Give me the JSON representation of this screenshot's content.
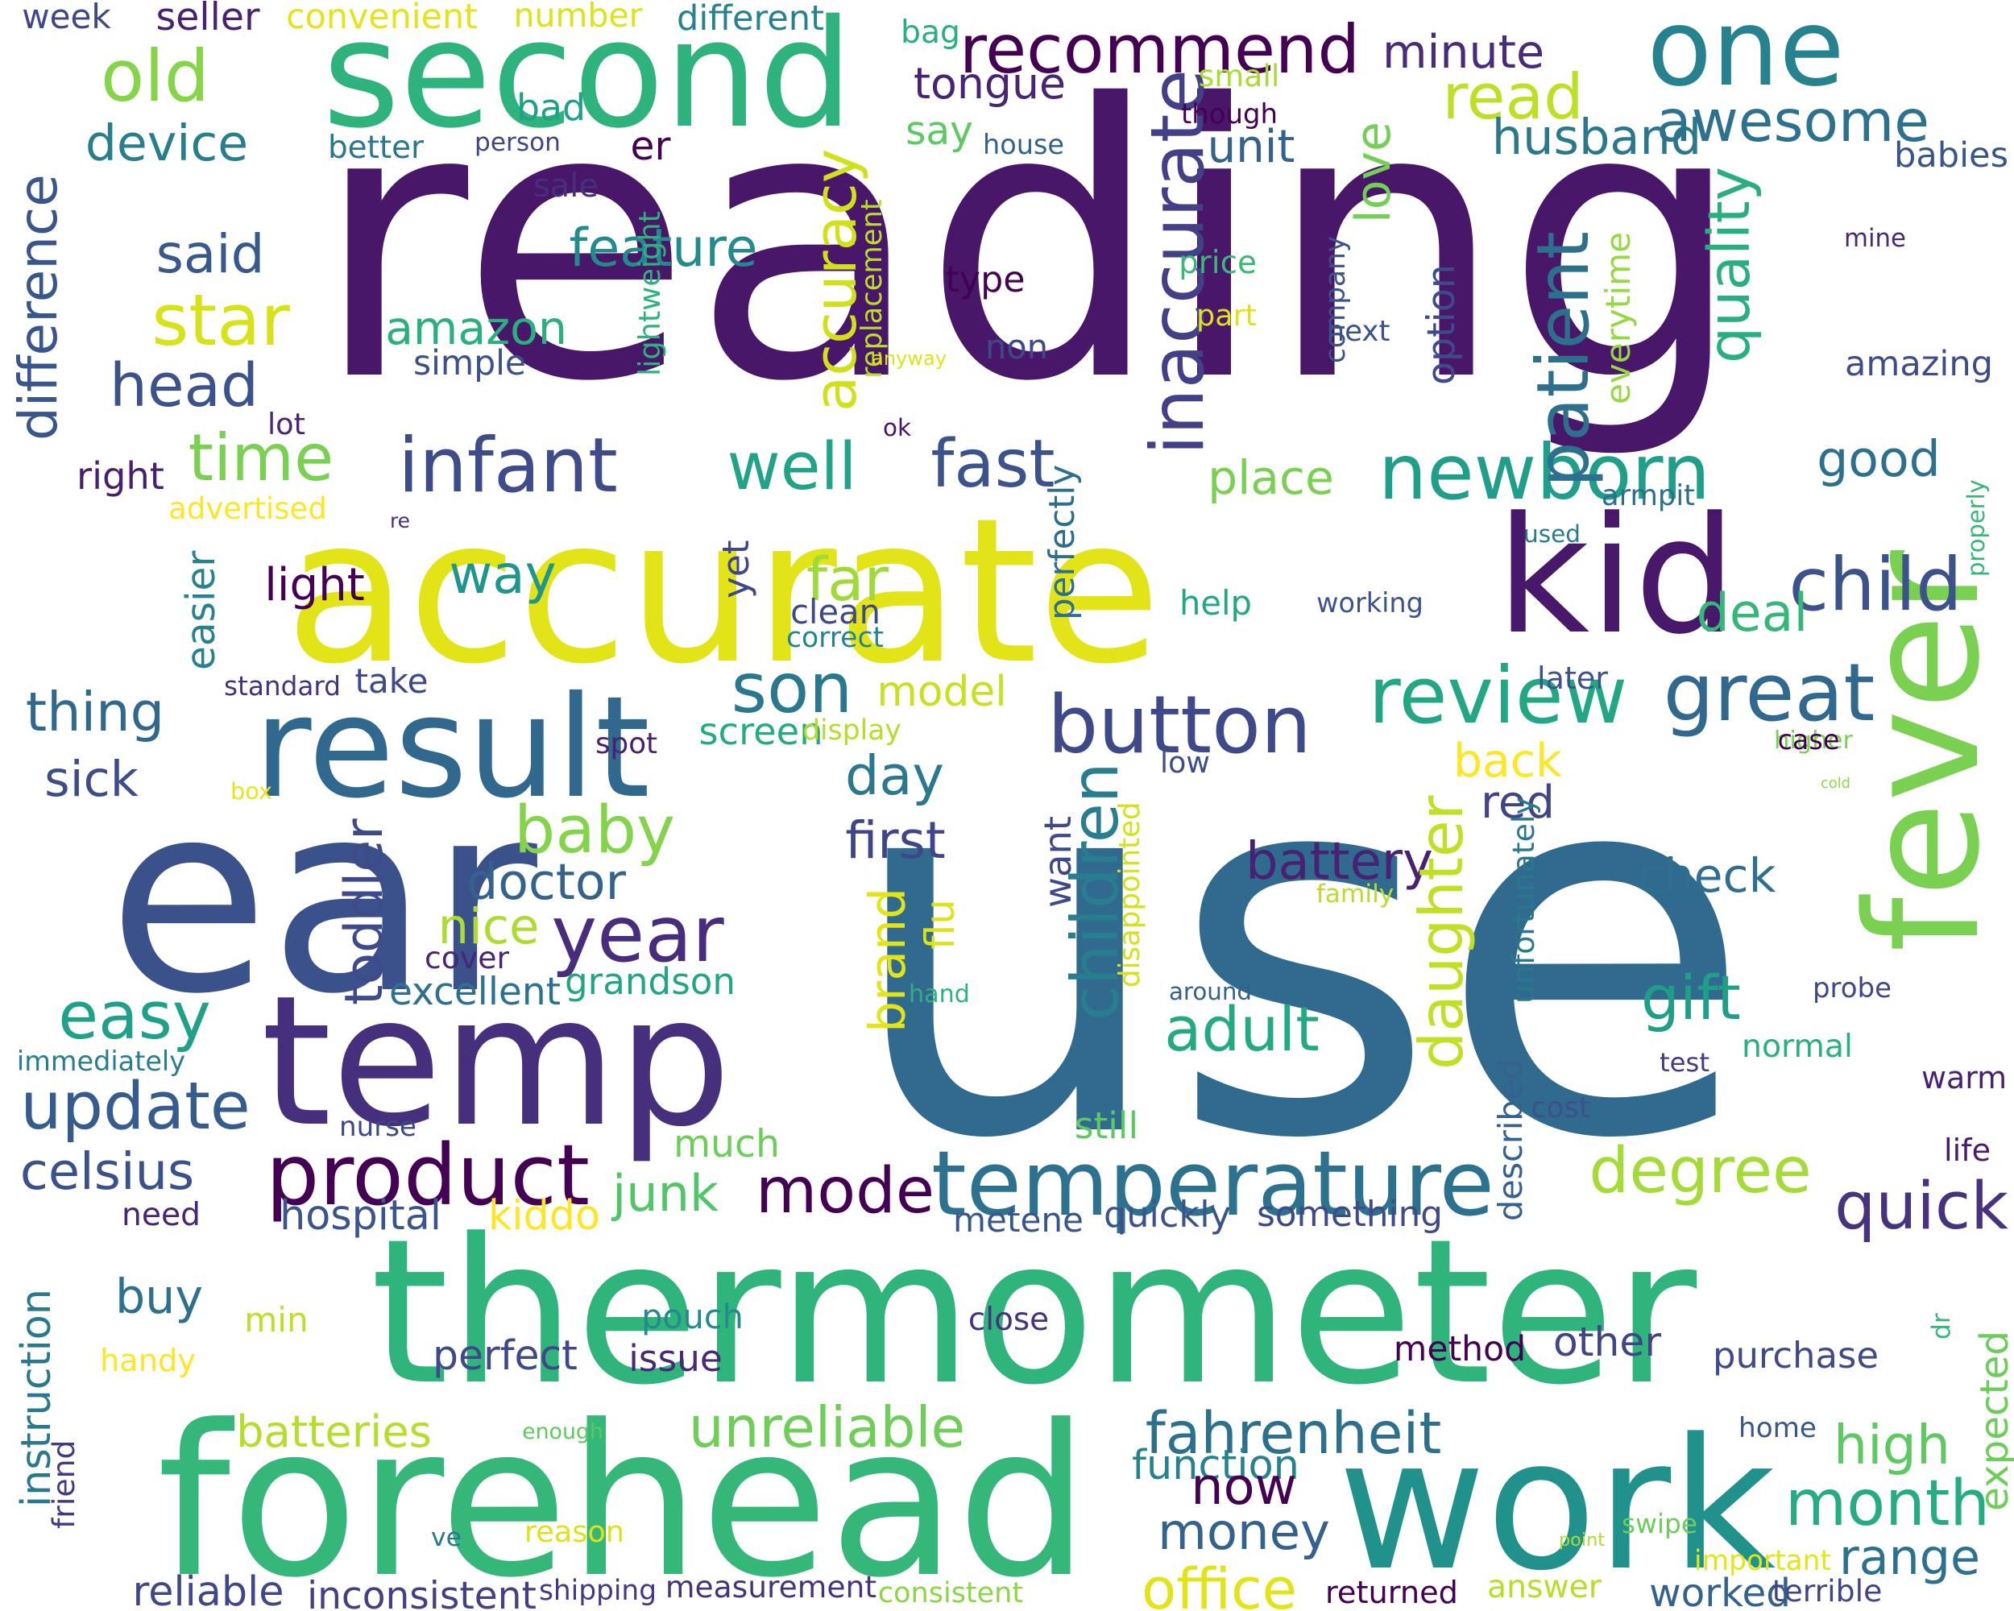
{
  "words": [
    {
      "text": "reading",
      "color": "#481769"
    },
    {
      "text": "use",
      "color": "#306a8e"
    },
    {
      "text": "thermometer",
      "color": "#2fb47c"
    },
    {
      "text": "accurate",
      "color": "#e2e418"
    },
    {
      "text": "ear",
      "color": "#3b518b"
    },
    {
      "text": "temp",
      "color": "#46307e"
    },
    {
      "text": "forehead",
      "color": "#35b779"
    },
    {
      "text": "second",
      "color": "#2eb37c"
    },
    {
      "text": "kid",
      "color": "#48186a"
    },
    {
      "text": "result",
      "color": "#31688e"
    },
    {
      "text": "work",
      "color": "#21918c"
    },
    {
      "text": "fever",
      "color": "#7ad151"
    },
    {
      "text": "one",
      "color": "#26828e"
    },
    {
      "text": "button",
      "color": "#3e4989"
    },
    {
      "text": "product",
      "color": "#440154"
    },
    {
      "text": "temperature",
      "color": "#2c728e"
    },
    {
      "text": "newborn",
      "color": "#1f9e89"
    },
    {
      "text": "infant",
      "color": "#3e4c8a"
    },
    {
      "text": "recommend",
      "color": "#440154"
    },
    {
      "text": "read",
      "color": "#bddf26"
    },
    {
      "text": "review",
      "color": "#22a785"
    },
    {
      "text": "great",
      "color": "#31688e"
    },
    {
      "text": "child",
      "color": "#3b528b"
    },
    {
      "text": "year",
      "color": "#472d7b"
    },
    {
      "text": "easy",
      "color": "#1fa088"
    },
    {
      "text": "update",
      "color": "#365c8d"
    },
    {
      "text": "mode",
      "color": "#440154"
    },
    {
      "text": "degree",
      "color": "#a5db36"
    },
    {
      "text": "time",
      "color": "#7ad151"
    },
    {
      "text": "star",
      "color": "#d8e219"
    },
    {
      "text": "son",
      "color": "#2a788e"
    },
    {
      "text": "well",
      "color": "#20a386"
    },
    {
      "text": "fast",
      "color": "#3b528b"
    },
    {
      "text": "husband",
      "color": "#2a788e"
    },
    {
      "text": "awesome",
      "color": "#2c728e"
    },
    {
      "text": "old",
      "color": "#86d549"
    },
    {
      "text": "device",
      "color": "#277f8e"
    },
    {
      "text": "inaccurate",
      "color": "#424086"
    },
    {
      "text": "option",
      "color": "#3e4a89"
    },
    {
      "text": "love",
      "color": "#73d056"
    },
    {
      "text": "unit",
      "color": "#33638d"
    },
    {
      "text": "minute",
      "color": "#472c7a"
    },
    {
      "text": "tongue",
      "color": "#482475"
    },
    {
      "text": "say",
      "color": "#5ec962"
    },
    {
      "text": "quality",
      "color": "#29af7f"
    },
    {
      "text": "patient",
      "color": "#2d708e"
    },
    {
      "text": "accuracy",
      "color": "#d0e11c"
    },
    {
      "text": "feature",
      "color": "#238a8d"
    },
    {
      "text": "said",
      "color": "#38598c"
    },
    {
      "text": "amazon",
      "color": "#2ab07f"
    },
    {
      "text": "head",
      "color": "#3b528b"
    },
    {
      "text": "difference",
      "color": "#39568c"
    },
    {
      "text": "place",
      "color": "#7ad151"
    },
    {
      "text": "good",
      "color": "#2d708e"
    },
    {
      "text": "way",
      "color": "#1f968b"
    },
    {
      "text": "light",
      "color": "#440154"
    },
    {
      "text": "far",
      "color": "#a0da39"
    },
    {
      "text": "deal",
      "color": "#35b779"
    },
    {
      "text": "day",
      "color": "#2a788e"
    },
    {
      "text": "model",
      "color": "#c8e020"
    },
    {
      "text": "baby",
      "color": "#84d44b"
    },
    {
      "text": "thing",
      "color": "#31688e"
    },
    {
      "text": "sick",
      "color": "#3e4c8a"
    },
    {
      "text": "easier",
      "color": "#26828e"
    },
    {
      "text": "first",
      "color": "#404588"
    },
    {
      "text": "doctor",
      "color": "#33638d"
    },
    {
      "text": "battery",
      "color": "#482173"
    },
    {
      "text": "check",
      "color": "#2e6e8e"
    },
    {
      "text": "back",
      "color": "#fde725"
    },
    {
      "text": "red",
      "color": "#404588"
    },
    {
      "text": "brand",
      "color": "#e2e418"
    },
    {
      "text": "flu",
      "color": "#dde318"
    },
    {
      "text": "children",
      "color": "#287d8e"
    },
    {
      "text": "daughter",
      "color": "#c2df23"
    },
    {
      "text": "gift",
      "color": "#1f9f88"
    },
    {
      "text": "adult",
      "color": "#24aa83"
    },
    {
      "text": "toddler",
      "color": "#3e4a89"
    },
    {
      "text": "nice",
      "color": "#addc30"
    },
    {
      "text": "cover",
      "color": "#482677"
    },
    {
      "text": "excellent",
      "color": "#2c728e"
    },
    {
      "text": "grandson",
      "color": "#21a685"
    },
    {
      "text": "much",
      "color": "#6ccd5a"
    },
    {
      "text": "junk",
      "color": "#52c569"
    },
    {
      "text": "kiddo",
      "color": "#fde725"
    },
    {
      "text": "hospital",
      "color": "#39558c"
    },
    {
      "text": "celsius",
      "color": "#3b518b"
    },
    {
      "text": "need",
      "color": "#482677"
    },
    {
      "text": "buy",
      "color": "#2d718e"
    },
    {
      "text": "min",
      "color": "#bddf26"
    },
    {
      "text": "handy",
      "color": "#fde725"
    },
    {
      "text": "pouch",
      "color": "#238a8d"
    },
    {
      "text": "perfect",
      "color": "#3f4889"
    },
    {
      "text": "issue",
      "color": "#482878"
    },
    {
      "text": "instruction",
      "color": "#2a788e"
    },
    {
      "text": "friend",
      "color": "#443983"
    },
    {
      "text": "batteries",
      "color": "#b5de2b"
    },
    {
      "text": "enough",
      "color": "#5ec962"
    },
    {
      "text": "unreliable",
      "color": "#6ece58"
    },
    {
      "text": "fahrenheit",
      "color": "#2d708e"
    },
    {
      "text": "function",
      "color": "#26828e"
    },
    {
      "text": "now",
      "color": "#440154"
    },
    {
      "text": "money",
      "color": "#33638d"
    },
    {
      "text": "high",
      "color": "#5ec962"
    },
    {
      "text": "month",
      "color": "#25ac82"
    },
    {
      "text": "range",
      "color": "#2c728e"
    },
    {
      "text": "quick",
      "color": "#46327e"
    },
    {
      "text": "something",
      "color": "#3e4a89"
    },
    {
      "text": "quickly",
      "color": "#3b528b"
    },
    {
      "text": "metene",
      "color": "#39568c"
    },
    {
      "text": "office",
      "color": "#e2e418"
    },
    {
      "text": "ve",
      "color": "#2a788e"
    },
    {
      "text": "reason",
      "color": "#dde318"
    },
    {
      "text": "returned",
      "color": "#440154"
    },
    {
      "text": "answer",
      "color": "#b8de29"
    },
    {
      "text": "worked",
      "color": "#33638d"
    },
    {
      "text": "terrible",
      "color": "#404588"
    },
    {
      "text": "shipping",
      "color": "#453781"
    },
    {
      "text": "measurement",
      "color": "#46337e"
    },
    {
      "text": "consistent",
      "color": "#8bd646"
    },
    {
      "text": "reliable",
      "color": "#3f4788"
    },
    {
      "text": "inconsistent",
      "color": "#433e85"
    },
    {
      "text": "method",
      "color": "#440154"
    },
    {
      "text": "purchase",
      "color": "#3e4a89"
    },
    {
      "text": "other",
      "color": "#404588"
    },
    {
      "text": "close",
      "color": "#46327e"
    },
    {
      "text": "dr",
      "color": "#35b779"
    },
    {
      "text": "expected",
      "color": "#6ccd5a"
    },
    {
      "text": "home",
      "color": "#39568c"
    },
    {
      "text": "swipe",
      "color": "#6ccd5a"
    },
    {
      "text": "point",
      "color": "#aadc32"
    },
    {
      "text": "important",
      "color": "#e5e419"
    },
    {
      "text": "described",
      "color": "#34618d"
    },
    {
      "text": "still",
      "color": "#5ec962"
    },
    {
      "text": "nurse",
      "color": "#3f4788"
    },
    {
      "text": "cost",
      "color": "#3b518b"
    },
    {
      "text": "life",
      "color": "#481b6d"
    },
    {
      "text": "warm",
      "color": "#482173"
    },
    {
      "text": "test",
      "color": "#443983"
    },
    {
      "text": "normal",
      "color": "#2ab07f"
    },
    {
      "text": "probe",
      "color": "#3f4788"
    },
    {
      "text": "unfortunately",
      "color": "#2a788e"
    },
    {
      "text": "around",
      "color": "#34608d"
    },
    {
      "text": "hand",
      "color": "#2db27d"
    },
    {
      "text": "immediately",
      "color": "#277f8e"
    },
    {
      "text": "family",
      "color": "#b8de29"
    },
    {
      "text": "disappointed",
      "color": "#d5e21a"
    },
    {
      "text": "want",
      "color": "#3e4989"
    },
    {
      "text": "cold",
      "color": "#8fd744"
    },
    {
      "text": "higher",
      "color": "#7ad151"
    },
    {
      "text": "case",
      "color": "#440154"
    },
    {
      "text": "low",
      "color": "#3e4c8a"
    },
    {
      "text": "box",
      "color": "#e7e419"
    },
    {
      "text": "spot",
      "color": "#482173"
    },
    {
      "text": "screen",
      "color": "#25ab82"
    },
    {
      "text": "display",
      "color": "#b5de2b"
    },
    {
      "text": "standard",
      "color": "#46337e"
    },
    {
      "text": "take",
      "color": "#3e4989"
    },
    {
      "text": "yet",
      "color": "#3f4788"
    },
    {
      "text": "clean",
      "color": "#3e4989"
    },
    {
      "text": "correct",
      "color": "#25858e"
    },
    {
      "text": "perfectly",
      "color": "#2d708e"
    },
    {
      "text": "help",
      "color": "#22a785"
    },
    {
      "text": "working",
      "color": "#3b528b"
    },
    {
      "text": "later",
      "color": "#3b528b"
    },
    {
      "text": "used",
      "color": "#287c8e"
    },
    {
      "text": "armpit",
      "color": "#2e6d8e"
    },
    {
      "text": "properly",
      "color": "#35b779"
    },
    {
      "text": "everytime",
      "color": "#95d840"
    },
    {
      "text": "lightweight",
      "color": "#2db27d"
    },
    {
      "text": "re",
      "color": "#472c7a"
    },
    {
      "text": "advertised",
      "color": "#fde725"
    },
    {
      "text": "right",
      "color": "#481f70"
    },
    {
      "text": "lot",
      "color": "#482576"
    },
    {
      "text": "ok",
      "color": "#481467"
    },
    {
      "text": "replacement",
      "color": "#b8de29"
    },
    {
      "text": "simple",
      "color": "#3b518b"
    },
    {
      "text": "non",
      "color": "#3e4989"
    },
    {
      "text": "anyway",
      "color": "#dde318"
    },
    {
      "text": "part",
      "color": "#dde318"
    },
    {
      "text": "company",
      "color": "#3b528b"
    },
    {
      "text": "next",
      "color": "#3b528b"
    },
    {
      "text": "type",
      "color": "#440154"
    },
    {
      "text": "price",
      "color": "#38b977"
    },
    {
      "text": "mine",
      "color": "#482878"
    },
    {
      "text": "amazing",
      "color": "#3e4c8a"
    },
    {
      "text": "babies",
      "color": "#39568c"
    },
    {
      "text": "house",
      "color": "#33638d"
    },
    {
      "text": "sale",
      "color": "#46307e"
    },
    {
      "text": "er",
      "color": "#440154"
    },
    {
      "text": "person",
      "color": "#404588"
    },
    {
      "text": "better",
      "color": "#2a788e"
    },
    {
      "text": "though",
      "color": "#440154"
    },
    {
      "text": "small",
      "color": "#a8db34"
    },
    {
      "text": "bad",
      "color": "#1fa188"
    },
    {
      "text": "bag",
      "color": "#29af7f"
    },
    {
      "text": "different",
      "color": "#26828e"
    },
    {
      "text": "number",
      "color": "#dde318"
    },
    {
      "text": "convenient",
      "color": "#e5e419"
    },
    {
      "text": "seller",
      "color": "#482173"
    },
    {
      "text": "week",
      "color": "#3f4788"
    }
  ]
}
